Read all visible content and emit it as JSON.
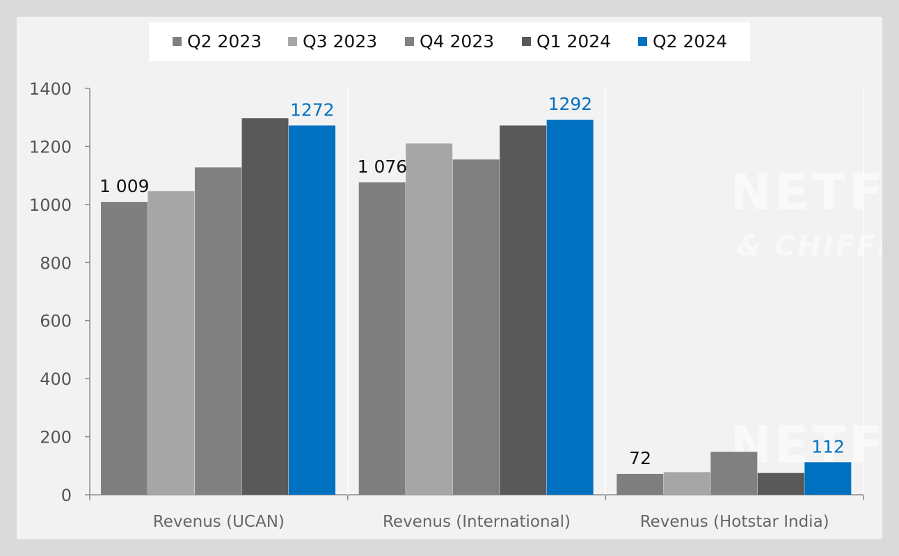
{
  "colors": {
    "Q2 2023": "#7f7f7f",
    "Q3 2023": "#a6a6a6",
    "Q4 2023": "#808080",
    "Q1 2024": "#595959",
    "Q2 2024": "#0070c0",
    "label_default": "#111111",
    "label_highlight": "#0070c0"
  },
  "watermark": {
    "brand": "NETFLIX",
    "tagline": "& CHIFFRES"
  },
  "chart_data": {
    "type": "bar",
    "title": "",
    "xlabel": "",
    "ylabel": "",
    "ylim": [
      0,
      1400
    ],
    "yticks": [
      0,
      200,
      400,
      600,
      800,
      1000,
      1200,
      1400
    ],
    "grid": false,
    "legend": "top-center",
    "categories": [
      "Revenus (UCAN)",
      "Revenus (International)",
      "Revenus (Hotstar India)"
    ],
    "series": [
      {
        "name": "Q2 2023",
        "values": [
          1009,
          1076,
          72
        ]
      },
      {
        "name": "Q3 2023",
        "values": [
          1046,
          1210,
          78
        ]
      },
      {
        "name": "Q4 2023",
        "values": [
          1128,
          1155,
          148
        ]
      },
      {
        "name": "Q1 2024",
        "values": [
          1297,
          1272,
          75
        ]
      },
      {
        "name": "Q2 2024",
        "values": [
          1272,
          1292,
          112
        ]
      }
    ],
    "data_labels": [
      {
        "category": 0,
        "series": 0,
        "text": "1 009",
        "highlight": false
      },
      {
        "category": 0,
        "series": 4,
        "text": "1272",
        "highlight": true
      },
      {
        "category": 1,
        "series": 0,
        "text": "1 076",
        "highlight": false
      },
      {
        "category": 1,
        "series": 4,
        "text": "1292",
        "highlight": true
      },
      {
        "category": 2,
        "series": 0,
        "text": "72",
        "highlight": false
      },
      {
        "category": 2,
        "series": 4,
        "text": "112",
        "highlight": true
      }
    ]
  }
}
